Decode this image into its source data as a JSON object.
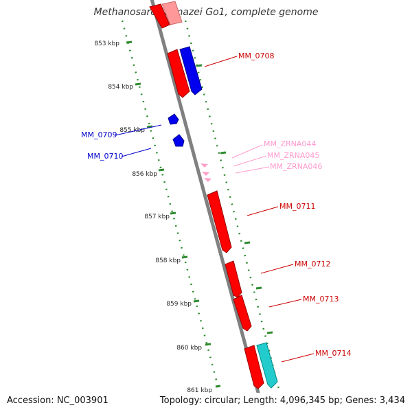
{
  "title": "Methanosarcina mazei Go1, complete genome",
  "footer": {
    "accession": "Accession: NC_003901",
    "summary": "Topology: circular; Length: 4,096,345 bp; Genes: 3,434"
  },
  "colors": {
    "backbone": "#808080",
    "ticks": "#2e8b2e",
    "red_gene": "#ff0000",
    "blue_gene": "#0000ee",
    "pink_rna": "#ff9ec8",
    "cyan_gene": "#22cccc"
  },
  "kbp_labels": [
    "853 kbp",
    "854 kbp",
    "855 kbp",
    "856 kbp",
    "857 kbp",
    "858 kbp",
    "859 kbp",
    "860 kbp",
    "861 kbp"
  ],
  "gene_labels": [
    {
      "text": "MM_0708",
      "color": "#cc0000"
    },
    {
      "text": "MM_0709",
      "color": "#0000cc"
    },
    {
      "text": "MM_0710",
      "color": "#0000cc"
    },
    {
      "text": "MM_ZRNA044",
      "color": "#ff99cc"
    },
    {
      "text": "MM_ZRNA045",
      "color": "#ff99cc"
    },
    {
      "text": "MM_ZRNA046",
      "color": "#ff99cc"
    },
    {
      "text": "MM_0711",
      "color": "#cc0000"
    },
    {
      "text": "MM_0712",
      "color": "#cc0000"
    },
    {
      "text": "MM_0713",
      "color": "#cc0000"
    },
    {
      "text": "MM_0714",
      "color": "#cc0000"
    }
  ]
}
